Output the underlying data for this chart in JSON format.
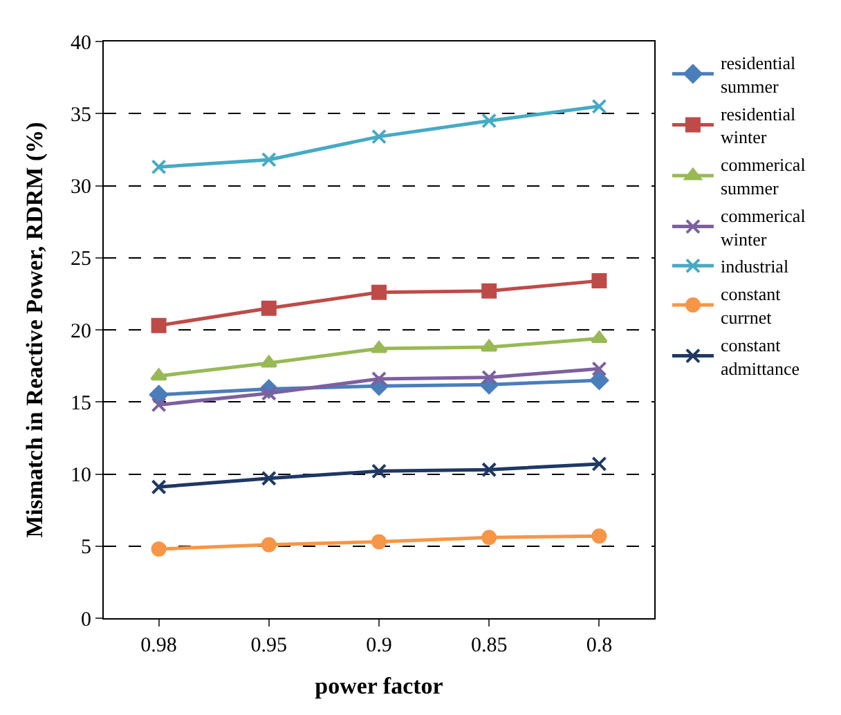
{
  "chart_data": {
    "type": "line",
    "xlabel": "power factor",
    "ylabel": "Mismatch in Reactive Power, RDRM (%)",
    "categories": [
      "0.98",
      "0.95",
      "0.9",
      "0.85",
      "0.8"
    ],
    "ylim": [
      0,
      40
    ],
    "yticks": [
      0,
      5,
      10,
      15,
      20,
      25,
      30,
      35,
      40
    ],
    "grid": "y",
    "legend": "right",
    "series": [
      {
        "name": "residential summer",
        "color": "#4a7ebb",
        "marker": "diamond",
        "values": [
          15.5,
          15.9,
          16.1,
          16.2,
          16.5
        ]
      },
      {
        "name": "residential winter",
        "color": "#be4b48",
        "marker": "square",
        "values": [
          20.3,
          21.5,
          22.6,
          22.7,
          23.4
        ]
      },
      {
        "name": "commerical summer",
        "color": "#98b954",
        "marker": "triangle",
        "values": [
          16.8,
          17.7,
          18.7,
          18.8,
          19.4
        ]
      },
      {
        "name": "commerical winter",
        "color": "#7d60a0",
        "marker": "cross",
        "values": [
          14.8,
          15.6,
          16.6,
          16.7,
          17.3
        ]
      },
      {
        "name": "industrial",
        "color": "#46aac5",
        "marker": "cross",
        "values": [
          31.3,
          31.8,
          33.4,
          34.5,
          35.5
        ]
      },
      {
        "name": "constant currnet",
        "color": "#f79646",
        "marker": "circle",
        "values": [
          4.8,
          5.1,
          5.3,
          5.6,
          5.7
        ]
      },
      {
        "name": "constant admittance",
        "color": "#1f3864",
        "marker": "cross",
        "values": [
          9.1,
          9.7,
          10.2,
          10.3,
          10.7
        ]
      }
    ]
  }
}
